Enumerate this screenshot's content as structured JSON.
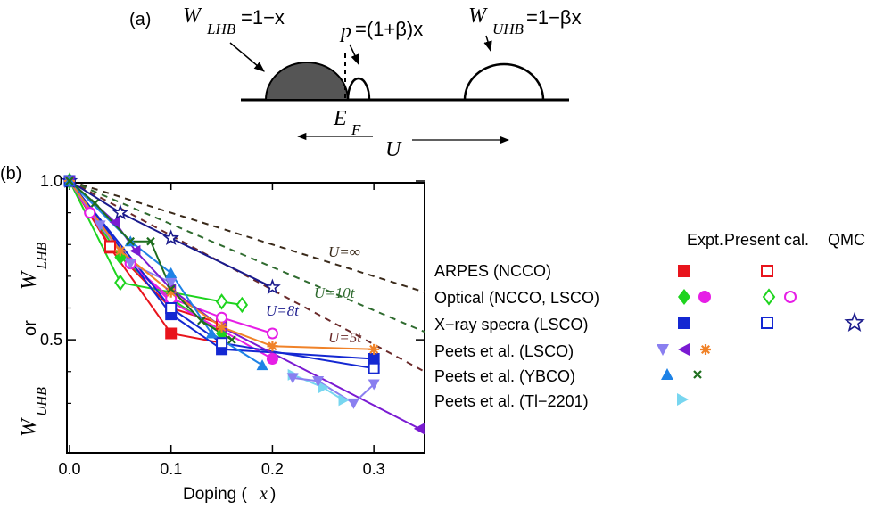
{
  "panel_a": {
    "label": "(a)",
    "w_lhb_sym": "W",
    "w_lhb_sub": "LHB",
    "w_lhb_val": "=1−x",
    "p_sym": "p",
    "p_val": "=(1+β)x",
    "w_uhb_sym": "W",
    "w_uhb_sub": "UHB",
    "w_uhb_val": "=1−βx",
    "ef_sym": "E",
    "ef_sub": "F",
    "u_label": "U"
  },
  "panel_b_label": "(b)",
  "legend": {
    "header_expt": "Expt.",
    "header_present": "Present cal.",
    "header_qmc": "QMC",
    "rows": [
      "ARPES (NCCO)",
      "Optical (NCCO, LSCO)",
      "X−ray specra (LSCO)",
      "Peets et al. (LSCO)",
      "Peets et al. (YBCO)",
      "Peets et al. (Tl−2201)"
    ]
  },
  "chart_data": {
    "type": "line",
    "xlabel_text": "Doping (",
    "xlabel_var": "x",
    "xlabel_close": ")",
    "ylabel_top_sym": "W",
    "ylabel_top_sub": "LHB",
    "ylabel_mid": "or",
    "ylabel_bot_sym": "W",
    "ylabel_bot_sub": "UHB",
    "xlim": [
      0.0,
      0.35
    ],
    "ylim": [
      0.2,
      1.0
    ],
    "x_ticks": [
      0.0,
      0.1,
      0.2,
      0.3
    ],
    "x_tick_labels": [
      "0.0",
      "0.1",
      "0.2",
      "0.3"
    ],
    "y_ticks": [
      0.5,
      1.0
    ],
    "y_tick_labels": [
      "0.5",
      "1.0"
    ],
    "annotations": [
      "U=∞",
      "U=10t",
      "U=8t",
      "U=5t"
    ],
    "series": [
      {
        "name": "U=∞",
        "color": "#3a2a1a",
        "style": "dashed",
        "marker": "none",
        "x": [
          0.0,
          0.35
        ],
        "y": [
          1.0,
          0.65
        ]
      },
      {
        "name": "U=10t",
        "color": "#2f6b2f",
        "style": "dashed",
        "marker": "none",
        "x": [
          0.0,
          0.35
        ],
        "y": [
          1.0,
          0.525
        ]
      },
      {
        "name": "U=5t",
        "color": "#6a2a2a",
        "style": "dashed",
        "marker": "none",
        "x": [
          0.0,
          0.35
        ],
        "y": [
          1.0,
          0.4
        ]
      },
      {
        "name": "U=8t",
        "color": "#1a1a8c",
        "style": "solid",
        "marker": "star-open",
        "x": [
          0.0,
          0.05,
          0.1,
          0.2
        ],
        "y": [
          1.0,
          0.9,
          0.82,
          0.665
        ]
      },
      {
        "name": "ARPES (NCCO) Expt.",
        "color": "#e8141c",
        "style": "solid",
        "marker": "square",
        "x": [
          0.0,
          0.04,
          0.1,
          0.15
        ],
        "y": [
          1.0,
          0.79,
          0.52,
          0.49
        ]
      },
      {
        "name": "ARPES (NCCO) Present cal.",
        "color": "#e8141c",
        "style": "solid",
        "marker": "square-open",
        "x": [
          0.0,
          0.04,
          0.1,
          0.15
        ],
        "y": [
          1.0,
          0.795,
          0.6,
          0.55
        ]
      },
      {
        "name": "Optical (NCCO, LSCO) Expt. diamond",
        "color": "#1ed41e",
        "style": "solid",
        "marker": "diamond",
        "x": [
          0.0,
          0.05,
          0.1,
          0.15
        ],
        "y": [
          1.0,
          0.76,
          0.63,
          0.52
        ]
      },
      {
        "name": "Optical (NCCO, LSCO) Expt. circle",
        "color": "#e61ee6",
        "style": "solid",
        "marker": "circle",
        "x": [
          0.0,
          0.02,
          0.06,
          0.1,
          0.2
        ],
        "y": [
          1.0,
          0.9,
          0.74,
          0.62,
          0.44
        ]
      },
      {
        "name": "Optical (NCCO, LSCO) Present cal. diamond",
        "color": "#1ed41e",
        "style": "solid",
        "marker": "diamond-open",
        "x": [
          0.0,
          0.05,
          0.1,
          0.15,
          0.17
        ],
        "y": [
          1.0,
          0.68,
          0.65,
          0.62,
          0.61
        ]
      },
      {
        "name": "Optical (NCCO, LSCO) Present cal. circle",
        "color": "#e61ee6",
        "style": "solid",
        "marker": "circle-open",
        "x": [
          0.0,
          0.02,
          0.06,
          0.1,
          0.15,
          0.2
        ],
        "y": [
          1.0,
          0.9,
          0.74,
          0.63,
          0.57,
          0.52
        ]
      },
      {
        "name": "X−ray specra (LSCO) Expt.",
        "color": "#1428d2",
        "style": "solid",
        "marker": "square",
        "x": [
          0.0,
          0.1,
          0.15,
          0.3
        ],
        "y": [
          1.0,
          0.58,
          0.47,
          0.44
        ]
      },
      {
        "name": "X−ray specra (LSCO) Present cal.",
        "color": "#1428d2",
        "style": "solid",
        "marker": "square-open",
        "x": [
          0.0,
          0.1,
          0.15,
          0.3
        ],
        "y": [
          1.0,
          0.6,
          0.49,
          0.41
        ]
      },
      {
        "name": "Peets et al. (LSCO) down",
        "color": "#8a7ff0",
        "style": "solid",
        "marker": "tri-down",
        "x": [
          0.0,
          0.03,
          0.06,
          0.1
        ],
        "y": [
          1.0,
          0.86,
          0.74,
          0.68
        ]
      },
      {
        "name": "Peets et al. (LSCO) left",
        "color": "#7a1ad2",
        "style": "solid",
        "marker": "tri-left",
        "x": [
          0.0,
          0.045,
          0.065,
          0.1,
          0.15,
          0.345
        ],
        "y": [
          1.0,
          0.87,
          0.78,
          0.66,
          0.54,
          0.22
        ]
      },
      {
        "name": "Peets et al. (LSCO) star",
        "color": "#f08228",
        "style": "solid",
        "marker": "asterisk",
        "x": [
          0.0,
          0.05,
          0.1,
          0.15,
          0.2,
          0.3
        ],
        "y": [
          1.0,
          0.78,
          0.65,
          0.54,
          0.48,
          0.47
        ]
      },
      {
        "name": "Peets et al. (YBCO) up",
        "color": "#1e82e6",
        "style": "solid",
        "marker": "tri-up",
        "x": [
          0.0,
          0.06,
          0.1,
          0.14,
          0.19
        ],
        "y": [
          1.0,
          0.81,
          0.71,
          0.52,
          0.42
        ]
      },
      {
        "name": "Peets et al. (YBCO) x",
        "color": "#1e6e1e",
        "style": "solid",
        "marker": "x",
        "x": [
          0.0,
          0.025,
          0.06,
          0.08,
          0.1,
          0.13,
          0.16
        ],
        "y": [
          1.0,
          0.93,
          0.81,
          0.81,
          0.66,
          0.56,
          0.5
        ]
      },
      {
        "name": "Peets et al. (Tl−2201)",
        "color": "#78d6f0",
        "style": "solid",
        "marker": "tri-right",
        "x": [
          0.22,
          0.25,
          0.27
        ],
        "y": [
          0.39,
          0.35,
          0.31
        ]
      },
      {
        "name": "Peets et al. (LSCO) down high-x",
        "color": "#8a7ff0",
        "style": "solid",
        "marker": "tri-down",
        "x": [
          0.22,
          0.245,
          0.28,
          0.3
        ],
        "y": [
          0.38,
          0.37,
          0.3,
          0.36
        ]
      }
    ]
  }
}
